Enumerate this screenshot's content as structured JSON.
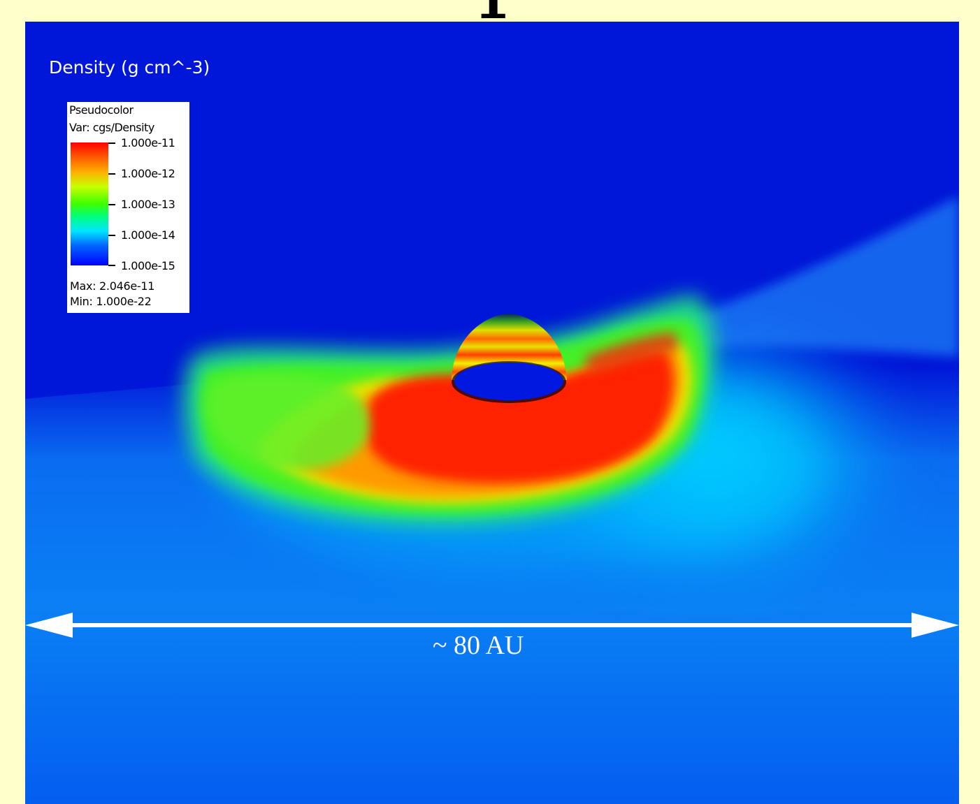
{
  "title_text": "Density (g cm^-3)",
  "legend": {
    "plot_type": "Pseudocolor",
    "variable": "Var: cgs/Density",
    "ticks": [
      "1.000e-11",
      "1.000e-12",
      "1.000e-13",
      "1.000e-14",
      "1.000e-15"
    ],
    "max_text": "Max: 2.046e-11",
    "min_text": "Min: 1.000e-22"
  },
  "scale_bar": {
    "label": "~ 80 AU"
  },
  "colors": {
    "slide_background": "#ffffcc",
    "viz_background": "#0015d6",
    "outflow_cone": "#0a7cf0",
    "disk_red": "#ff1a00",
    "disk_yellow": "#f5d400",
    "disk_green": "#3dea1a",
    "scale_bar": "#ffffff"
  },
  "icons": {
    "scale_bar": "double-headed-arrow-icon"
  }
}
